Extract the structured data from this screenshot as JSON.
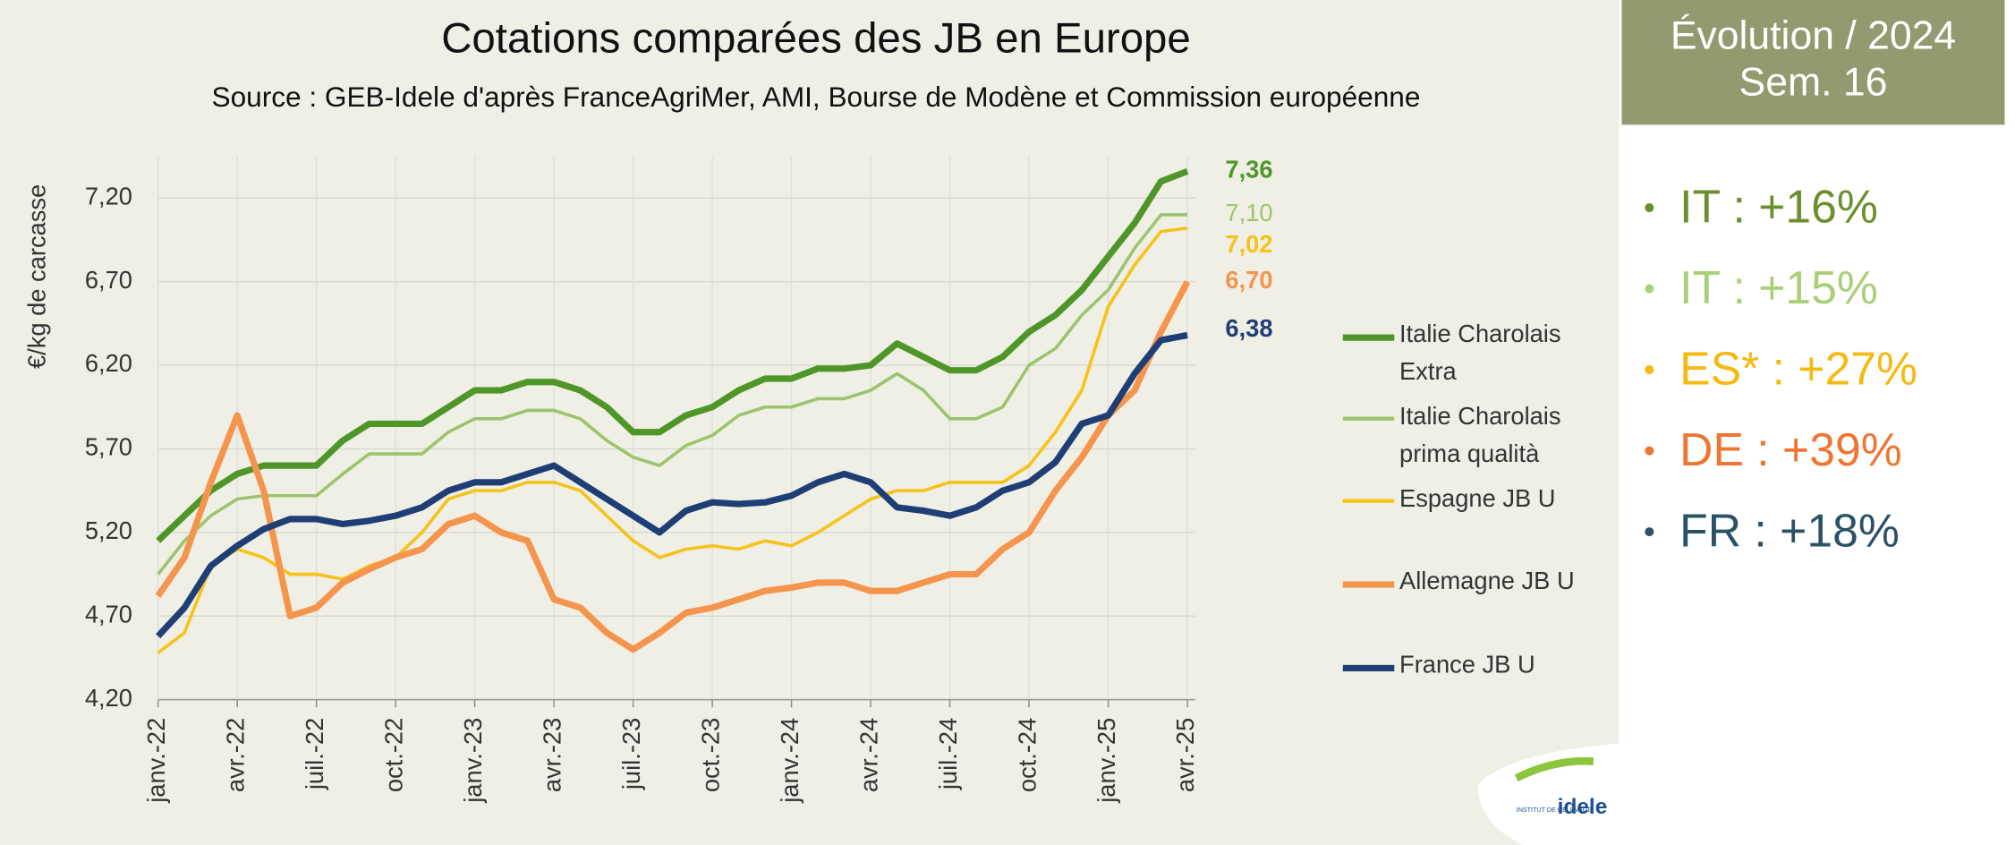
{
  "chart_data": {
    "type": "line",
    "title": "Cotations comparées des JB en Europe",
    "subtitle": "Source : GEB-Idele d'après FranceAgriMer, AMI, Bourse de Modène et Commission  européenne",
    "y_label": "€/kg de carcasse",
    "categories": [
      "janv.-22",
      null,
      null,
      "avr.-22",
      null,
      null,
      "juil.-22",
      null,
      null,
      "oct.-22",
      null,
      null,
      "janv.-23",
      null,
      null,
      "avr.-23",
      null,
      null,
      "juil.-23",
      null,
      null,
      "oct.-23",
      null,
      null,
      "janv.-24",
      null,
      null,
      "avr.-24",
      null,
      null,
      "juil.-24",
      null,
      null,
      "oct.-24",
      null,
      null,
      "janv.-25",
      null,
      null,
      "avr.-25"
    ],
    "ylim": [
      4.2,
      7.45
    ],
    "yticks": [
      {
        "value": 4.2,
        "label": "4,20"
      },
      {
        "value": 4.7,
        "label": "4,70"
      },
      {
        "value": 5.2,
        "label": "5,20"
      },
      {
        "value": 5.7,
        "label": "5,70"
      },
      {
        "value": 6.2,
        "label": "6,20"
      },
      {
        "value": 6.7,
        "label": "6,70"
      },
      {
        "value": 7.2,
        "label": "7,20"
      }
    ],
    "grid": true,
    "series": [
      {
        "name": "Italie Charolais Extra",
        "color": "#4f9628",
        "width": 5,
        "values": [
          5.15,
          5.3,
          5.45,
          5.55,
          5.6,
          5.6,
          5.6,
          5.75,
          5.85,
          5.85,
          5.85,
          5.95,
          6.05,
          6.05,
          6.1,
          6.1,
          6.05,
          5.95,
          5.8,
          5.8,
          5.9,
          5.95,
          6.05,
          6.12,
          6.12,
          6.18,
          6.18,
          6.2,
          6.33,
          6.25,
          6.17,
          6.17,
          6.25,
          6.4,
          6.5,
          6.65,
          6.85,
          7.05,
          7.3,
          7.36
        ],
        "value_labels": [
          null,
          null,
          null,
          null,
          null,
          null,
          null,
          null,
          null,
          null,
          null,
          null,
          null,
          null,
          null,
          null,
          null,
          null,
          null,
          null,
          null,
          null,
          null,
          null,
          null,
          null,
          null,
          null,
          null,
          null,
          null,
          null,
          null,
          null,
          null,
          null,
          null,
          null,
          null,
          "7,36"
        ]
      },
      {
        "name": "Italie Charolais prima qualità",
        "color": "#9dc46c",
        "width": 2.5,
        "values": [
          4.95,
          5.15,
          5.3,
          5.4,
          5.42,
          5.42,
          5.42,
          5.55,
          5.67,
          5.67,
          5.67,
          5.8,
          5.88,
          5.88,
          5.93,
          5.93,
          5.88,
          5.75,
          5.65,
          5.6,
          5.72,
          5.78,
          5.9,
          5.95,
          5.95,
          6.0,
          6.0,
          6.05,
          6.15,
          6.05,
          5.88,
          5.88,
          5.95,
          6.2,
          6.3,
          6.5,
          6.65,
          6.9,
          7.1,
          7.1
        ],
        "value_labels": [
          null,
          null,
          null,
          null,
          null,
          null,
          null,
          null,
          null,
          null,
          null,
          null,
          null,
          null,
          null,
          null,
          null,
          null,
          null,
          null,
          null,
          null,
          null,
          null,
          null,
          null,
          null,
          null,
          null,
          null,
          null,
          null,
          null,
          null,
          null,
          null,
          null,
          null,
          null,
          "7,10"
        ]
      },
      {
        "name": "Espagne JB U",
        "color": "#f7c21a",
        "width": 2.5,
        "values": [
          4.48,
          4.6,
          5.0,
          5.1,
          5.05,
          4.95,
          4.95,
          4.92,
          5.0,
          5.05,
          5.2,
          5.4,
          5.45,
          5.45,
          5.5,
          5.5,
          5.45,
          5.3,
          5.15,
          5.05,
          5.1,
          5.12,
          5.1,
          5.15,
          5.12,
          5.2,
          5.3,
          5.4,
          5.45,
          5.45,
          5.5,
          5.5,
          5.5,
          5.6,
          5.8,
          6.05,
          6.55,
          6.8,
          7.0,
          7.02
        ],
        "value_labels": [
          null,
          null,
          null,
          null,
          null,
          null,
          null,
          null,
          null,
          null,
          null,
          null,
          null,
          null,
          null,
          null,
          null,
          null,
          null,
          null,
          null,
          null,
          null,
          null,
          null,
          null,
          null,
          null,
          null,
          null,
          null,
          null,
          null,
          null,
          null,
          null,
          null,
          null,
          null,
          "7,02"
        ]
      },
      {
        "name": "Allemagne JB U",
        "color": "#f5954d",
        "width": 5,
        "values": [
          4.82,
          5.05,
          5.5,
          5.9,
          5.45,
          4.7,
          4.75,
          4.9,
          4.98,
          5.05,
          5.1,
          5.25,
          5.3,
          5.2,
          5.15,
          4.8,
          4.75,
          4.6,
          4.5,
          4.6,
          4.72,
          4.75,
          4.8,
          4.85,
          4.87,
          4.9,
          4.9,
          4.85,
          4.85,
          4.9,
          4.95,
          4.95,
          5.1,
          5.2,
          5.45,
          5.65,
          5.9,
          6.05,
          6.4,
          6.7
        ],
        "value_labels": [
          null,
          null,
          null,
          null,
          null,
          null,
          null,
          null,
          null,
          null,
          null,
          null,
          null,
          null,
          null,
          null,
          null,
          null,
          null,
          null,
          null,
          null,
          null,
          null,
          null,
          null,
          null,
          null,
          null,
          null,
          null,
          null,
          null,
          null,
          null,
          null,
          null,
          null,
          null,
          "6,70"
        ]
      },
      {
        "name": "France JB U",
        "color": "#1f3e75",
        "width": 5,
        "values": [
          4.58,
          4.75,
          5.0,
          5.12,
          5.22,
          5.28,
          5.28,
          5.25,
          5.27,
          5.3,
          5.35,
          5.45,
          5.5,
          5.5,
          5.55,
          5.6,
          5.5,
          5.4,
          5.3,
          5.2,
          5.33,
          5.38,
          5.37,
          5.38,
          5.42,
          5.5,
          5.55,
          5.5,
          5.35,
          5.33,
          5.3,
          5.35,
          5.45,
          5.5,
          5.62,
          5.85,
          5.9,
          6.15,
          6.35,
          6.38
        ],
        "value_labels": [
          null,
          null,
          null,
          null,
          null,
          null,
          null,
          null,
          null,
          null,
          null,
          null,
          null,
          null,
          null,
          null,
          null,
          null,
          null,
          null,
          null,
          null,
          null,
          null,
          null,
          null,
          null,
          null,
          null,
          null,
          null,
          null,
          null,
          null,
          null,
          null,
          null,
          null,
          null,
          "6,38"
        ]
      }
    ]
  },
  "panel": {
    "title": "Évolution / 2024",
    "subtitle": "Sem. 16",
    "items": [
      {
        "text": "IT  : +16%",
        "color": "#6a8f2c"
      },
      {
        "text": "IT : +15%",
        "color": "#a9cf79"
      },
      {
        "text": "ES*  : +27%",
        "color": "#f6b914"
      },
      {
        "text": "DE : +39%",
        "color": "#ee7632"
      },
      {
        "text": "FR : +18%",
        "color": "#2b5166"
      }
    ]
  },
  "logo": {
    "name": "idele",
    "tagline": "INSTITUT DE L'ÉLEVAGE"
  }
}
